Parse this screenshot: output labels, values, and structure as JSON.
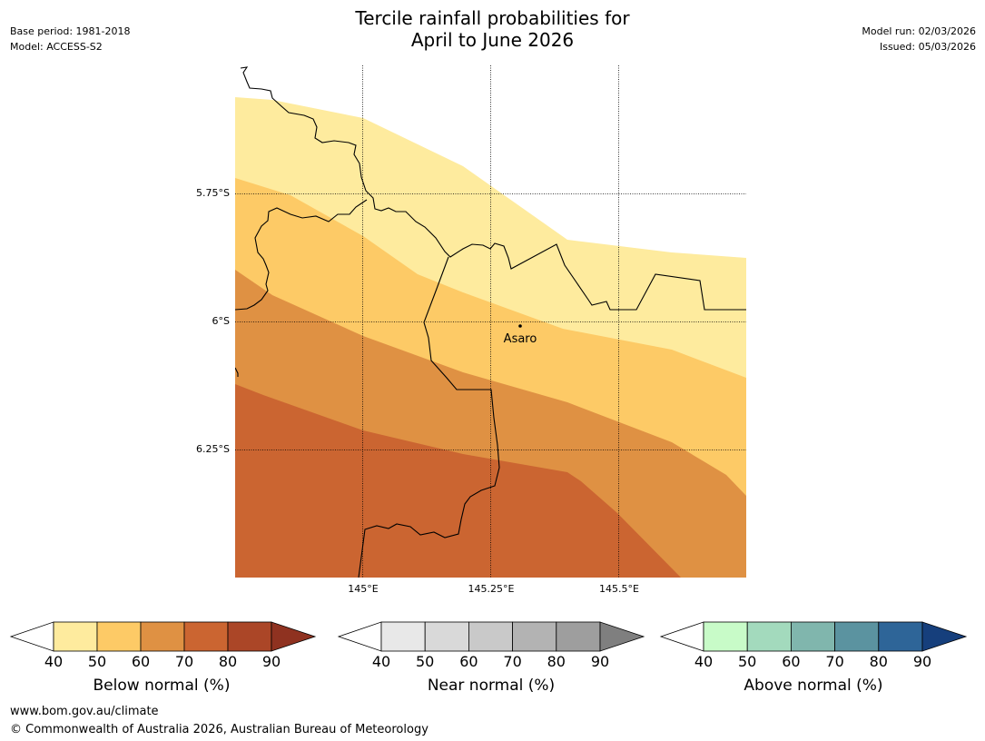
{
  "header": {
    "title_line1": "Tercile rainfall probabilities for",
    "title_line2": "April to June 2026",
    "base_period": "Base period: 1981-2018",
    "model": "Model: ACCESS-S2",
    "model_run": "Model run: 02/03/2026",
    "issued": "Issued: 05/03/2026"
  },
  "map": {
    "lat_labels": [
      "5.75°S",
      "6°S",
      "6.25°S"
    ],
    "lon_labels": [
      "145°E",
      "145.25°E",
      "145.5°E"
    ],
    "place": "Asaro",
    "colors": {
      "band_40_50": "#feeb9e",
      "band_50_60": "#fdca66",
      "band_60_70": "#df9143",
      "band_70_80": "#cb6531"
    }
  },
  "colorbars": [
    {
      "label": "Below normal (%)",
      "ticks": [
        "40",
        "50",
        "60",
        "70",
        "80",
        "90"
      ],
      "colors": [
        "#feeb9e",
        "#fdca66",
        "#df9143",
        "#cb6531",
        "#ab4627",
        "#8f3220"
      ]
    },
    {
      "label": "Near normal (%)",
      "ticks": [
        "40",
        "50",
        "60",
        "70",
        "80",
        "90"
      ],
      "colors": [
        "#e8e8e8",
        "#d9d9d9",
        "#c9c9c9",
        "#b3b3b3",
        "#9e9e9e",
        "#7f7f7f"
      ]
    },
    {
      "label": "Above normal (%)",
      "ticks": [
        "40",
        "50",
        "60",
        "70",
        "80",
        "90"
      ],
      "colors": [
        "#c8fbc8",
        "#a3dabd",
        "#80b6ad",
        "#5b93a0",
        "#2e6598",
        "#163f7c"
      ]
    }
  ],
  "footer": {
    "website": "www.bom.gov.au/climate",
    "copyright": "© Commonwealth of Australia 2026, Australian Bureau of Meteorology"
  }
}
